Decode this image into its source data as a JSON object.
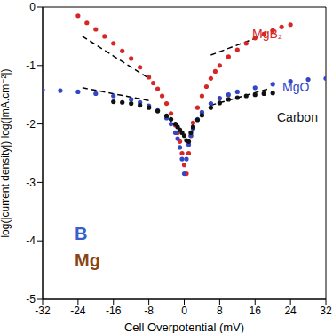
{
  "chart_data": {
    "type": "scatter",
    "x_label": "Cell Overpotential (mV)",
    "y_label": "log(|current density|) log(|mA.cm⁻²|)",
    "xlim": [
      -32,
      32
    ],
    "xticks": [
      -32,
      -24,
      -16,
      -8,
      0,
      8,
      16,
      24,
      32
    ],
    "ylim": [
      -5,
      0
    ],
    "yticks": [
      -5,
      -4,
      -3,
      -2,
      -1,
      0
    ],
    "grid": false,
    "series": [
      {
        "name": "MgB₂",
        "color": "#d62728",
        "marker": "o",
        "x": [
          -24,
          -22,
          -20,
          -18,
          -16,
          -14,
          -12,
          -10,
          -8,
          -7,
          -6,
          -5,
          -4,
          -3,
          -2,
          -1.5,
          -1,
          -0.5,
          0,
          0.5,
          1,
          1.5,
          2,
          3,
          4,
          5,
          6,
          7,
          8,
          10,
          12,
          14,
          16,
          18,
          20,
          22,
          24
        ],
        "values": [
          -0.15,
          -0.27,
          -0.38,
          -0.5,
          -0.62,
          -0.75,
          -0.88,
          -1.03,
          -1.2,
          -1.3,
          -1.4,
          -1.52,
          -1.65,
          -1.82,
          -2.02,
          -2.15,
          -2.3,
          -2.5,
          -2.7,
          -2.85,
          -2.5,
          -2.2,
          -1.98,
          -1.72,
          -1.52,
          -1.36,
          -1.22,
          -1.1,
          -1.0,
          -0.85,
          -0.73,
          -0.62,
          -0.53,
          -0.46,
          -0.4,
          -0.34,
          -0.3
        ]
      },
      {
        "name": "MgO",
        "color": "#3346c4",
        "marker": "o",
        "x": [
          -32,
          -28,
          -24,
          -20,
          -16,
          -12,
          -10,
          -8,
          -6,
          -4,
          -3,
          -2,
          -1.5,
          -1,
          -0.5,
          0,
          0.5,
          1,
          1.5,
          2,
          3,
          4,
          6,
          8,
          10,
          12,
          16,
          20,
          24,
          28,
          32
        ],
        "values": [
          -1.42,
          -1.43,
          -1.45,
          -1.48,
          -1.52,
          -1.58,
          -1.63,
          -1.69,
          -1.77,
          -1.9,
          -2.0,
          -2.15,
          -2.25,
          -2.4,
          -2.6,
          -2.85,
          -2.6,
          -2.35,
          -2.2,
          -2.08,
          -1.92,
          -1.8,
          -1.65,
          -1.56,
          -1.5,
          -1.45,
          -1.38,
          -1.32,
          -1.27,
          -1.24,
          -1.22
        ]
      },
      {
        "name": "Carbon",
        "color": "#111111",
        "marker": "o",
        "x": [
          -16,
          -14,
          -12,
          -10,
          -8,
          -6,
          -4,
          -3,
          -2,
          -1.5,
          -1,
          -0.5,
          0,
          0.5,
          1,
          1.5,
          2,
          3,
          4,
          6,
          8,
          10,
          12,
          14,
          16,
          18,
          20
        ],
        "values": [
          -1.62,
          -1.63,
          -1.65,
          -1.68,
          -1.72,
          -1.78,
          -1.86,
          -1.92,
          -2.0,
          -2.05,
          -2.1,
          -2.15,
          -2.2,
          -2.28,
          -2.3,
          -2.15,
          -2.05,
          -1.93,
          -1.85,
          -1.72,
          -1.64,
          -1.58,
          -1.55,
          -1.52,
          -1.5,
          -1.48,
          -1.47
        ]
      }
    ],
    "tangent_lines": [
      {
        "color": "#000000",
        "line_style": "dashed",
        "x": [
          -23,
          -8
        ],
        "values": [
          -0.5,
          -1.22
        ]
      },
      {
        "color": "#000000",
        "line_style": "dashed",
        "x": [
          6,
          19
        ],
        "values": [
          -0.82,
          -0.45
        ]
      },
      {
        "color": "#000000",
        "line_style": "dashed",
        "x": [
          -23,
          -8
        ],
        "values": [
          -1.38,
          -1.6
        ]
      },
      {
        "color": "#000000",
        "line_style": "dashed",
        "x": [
          6,
          19
        ],
        "values": [
          -1.68,
          -1.4
        ]
      }
    ],
    "annotations": [
      {
        "text": "B",
        "color": "#3a5fcd"
      },
      {
        "text": "Mg",
        "color": "#8b4513"
      }
    ]
  }
}
